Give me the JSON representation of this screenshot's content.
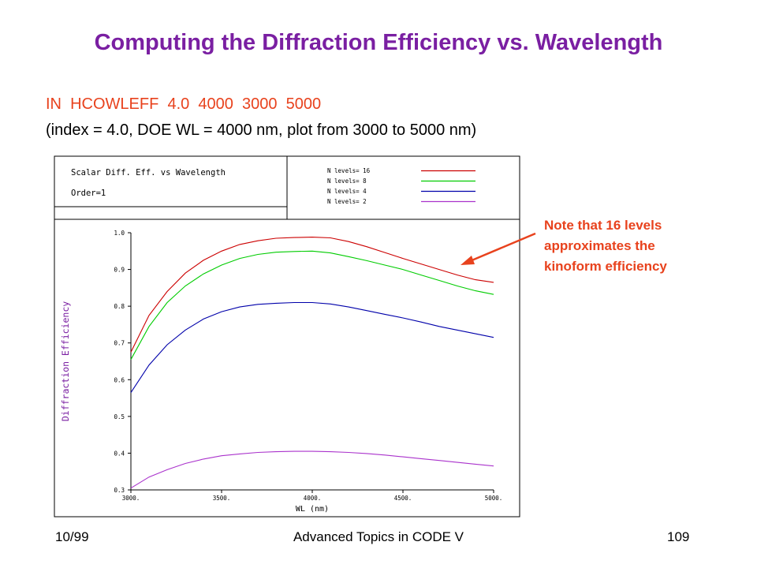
{
  "slide": {
    "title": "Computing the Diffraction Efficiency vs. Wavelength",
    "command": "IN  HCOWLEFF  4.0  4000  3000  5000",
    "explanation": "(index = 4.0, DOE WL = 4000 nm, plot from 3000 to 5000 nm)",
    "note_lines": [
      "Note that 16 levels",
      "approximates the",
      "kinoform efficiency"
    ],
    "footer_left": "10/99",
    "footer_center": "Advanced Topics in CODE V",
    "footer_right": "109",
    "accent_colors": {
      "title": "#7a1fa2",
      "command": "#e8421d",
      "note": "#e8421d",
      "arrow": "#e8421d"
    }
  },
  "chart_data": {
    "type": "line",
    "title": "Scalar Diff. Eff. vs Wavelength",
    "subtitle": "Order=1",
    "xlabel": "WL (nm)",
    "ylabel": "Diffraction Efficiency",
    "xlim": [
      3000,
      5000
    ],
    "ylim": [
      0.3,
      1.0
    ],
    "xticks": [
      "3000.",
      "3500.",
      "4000.",
      "4500.",
      "5000."
    ],
    "yticks": [
      "0.3",
      "0.4",
      "0.5",
      "0.6",
      "0.7",
      "0.8",
      "0.9",
      "1.0"
    ],
    "grid": false,
    "legend_position": "top-right",
    "x": [
      3000,
      3100,
      3200,
      3300,
      3400,
      3500,
      3600,
      3700,
      3800,
      3900,
      4000,
      4100,
      4200,
      4300,
      4400,
      4500,
      4600,
      4700,
      4800,
      4900,
      5000
    ],
    "series": [
      {
        "name": "N levels= 16",
        "color": "#cc0000",
        "values": [
          0.675,
          0.775,
          0.84,
          0.89,
          0.925,
          0.95,
          0.968,
          0.978,
          0.985,
          0.987,
          0.988,
          0.986,
          0.976,
          0.962,
          0.946,
          0.93,
          0.915,
          0.9,
          0.885,
          0.872,
          0.865
        ]
      },
      {
        "name": "N levels= 8",
        "color": "#00cc00",
        "values": [
          0.655,
          0.745,
          0.81,
          0.855,
          0.888,
          0.912,
          0.93,
          0.941,
          0.947,
          0.949,
          0.95,
          0.945,
          0.935,
          0.924,
          0.912,
          0.9,
          0.885,
          0.87,
          0.855,
          0.842,
          0.832
        ]
      },
      {
        "name": "N levels= 4",
        "color": "#0000aa",
        "values": [
          0.565,
          0.64,
          0.695,
          0.735,
          0.765,
          0.785,
          0.798,
          0.805,
          0.808,
          0.81,
          0.81,
          0.806,
          0.798,
          0.788,
          0.778,
          0.768,
          0.757,
          0.745,
          0.735,
          0.725,
          0.715
        ]
      },
      {
        "name": "N levels= 2",
        "color": "#aa33cc",
        "values": [
          0.305,
          0.335,
          0.355,
          0.372,
          0.384,
          0.393,
          0.398,
          0.402,
          0.404,
          0.405,
          0.405,
          0.404,
          0.402,
          0.399,
          0.395,
          0.39,
          0.385,
          0.38,
          0.375,
          0.37,
          0.365
        ]
      }
    ]
  }
}
